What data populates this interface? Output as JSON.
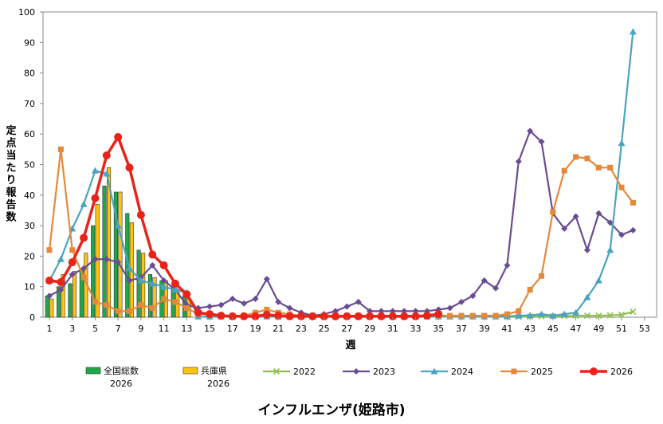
{
  "chart_data": {
    "type": "bar+line",
    "title": "インフルエンザ(姫路市)",
    "xlabel": "週",
    "ylabel": "定点当たり報告数",
    "xlim": [
      1,
      53
    ],
    "ylim": [
      0,
      100
    ],
    "yticks": [
      0,
      10,
      20,
      30,
      40,
      50,
      60,
      70,
      80,
      90,
      100
    ],
    "xticks": [
      1,
      3,
      5,
      7,
      9,
      11,
      13,
      15,
      17,
      19,
      21,
      23,
      25,
      27,
      29,
      31,
      33,
      35,
      37,
      39,
      41,
      43,
      45,
      47,
      49,
      51,
      53
    ],
    "colors": {
      "national": "#1fa84a",
      "hyogo": "#ffc20e",
      "y2022": "#8fbf4f",
      "y2023": "#6a4c93",
      "y2024": "#4aa3c0",
      "y2025": "#e6883a",
      "y2026": "#e8231a"
    },
    "bars": [
      {
        "name": "全国総数\n2026",
        "label_line1": "全国総数",
        "label_line2": "2026",
        "color_key": "national",
        "x": [
          1,
          2,
          3,
          4,
          5,
          6,
          7,
          8,
          9,
          10,
          11,
          12,
          13
        ],
        "values": [
          7,
          10,
          11,
          16,
          30,
          43,
          41,
          34,
          22,
          14,
          12,
          10,
          7
        ]
      },
      {
        "name": "兵庫県\n2026",
        "label_line1": "兵庫県",
        "label_line2": "2026",
        "color_key": "hyogo",
        "x": [
          1,
          2,
          3,
          4,
          5,
          6,
          7,
          8,
          9,
          10,
          11,
          12,
          13
        ],
        "values": [
          6,
          14,
          15,
          21,
          37,
          49,
          41,
          31,
          21,
          13,
          12,
          9,
          6
        ]
      }
    ],
    "series": [
      {
        "name": "2022",
        "color_key": "y2022",
        "marker": "x",
        "x": [
          41,
          42,
          43,
          44,
          45,
          46,
          47,
          48,
          49,
          50,
          51,
          52
        ],
        "values": [
          0.1,
          0.1,
          0.2,
          0.3,
          0.3,
          0.4,
          0.5,
          0.5,
          0.5,
          0.6,
          0.8,
          1.8
        ]
      },
      {
        "name": "2023",
        "color_key": "y2023",
        "marker": "diamond",
        "x": [
          1,
          2,
          3,
          4,
          5,
          6,
          7,
          8,
          9,
          10,
          11,
          12,
          13,
          14,
          15,
          16,
          17,
          18,
          19,
          20,
          21,
          22,
          23,
          24,
          25,
          26,
          27,
          28,
          29,
          30,
          31,
          32,
          33,
          34,
          35,
          36,
          37,
          38,
          39,
          40,
          41,
          42,
          43,
          44,
          45,
          46,
          47,
          48,
          49,
          50,
          51,
          52
        ],
        "values": [
          7,
          9,
          14,
          16,
          19,
          19,
          18,
          12,
          13,
          17,
          12,
          9,
          4,
          3,
          3.5,
          4,
          6,
          4.5,
          6,
          12.5,
          5,
          3,
          1.5,
          0.5,
          1,
          2,
          3.5,
          5,
          2,
          2,
          2,
          2,
          2,
          2,
          2.5,
          3,
          5,
          7,
          12,
          9.5,
          17,
          51,
          61,
          57.5,
          34,
          29,
          33,
          22,
          34,
          31,
          27,
          28.5
        ]
      },
      {
        "name": "2024",
        "color_key": "y2024",
        "marker": "triangle",
        "x": [
          1,
          2,
          3,
          4,
          5,
          6,
          7,
          8,
          9,
          10,
          11,
          12,
          13,
          14,
          15,
          16,
          17,
          18,
          19,
          20,
          21,
          22,
          23,
          24,
          25,
          26,
          27,
          28,
          29,
          30,
          31,
          32,
          33,
          34,
          35,
          36,
          37,
          38,
          39,
          40,
          41,
          42,
          43,
          44,
          45,
          46,
          47,
          48,
          49,
          50,
          51,
          52
        ],
        "values": [
          12,
          19,
          29,
          37,
          48,
          47,
          30,
          16,
          12,
          11,
          10,
          9,
          8,
          0.2,
          0.2,
          0.2,
          0.2,
          0.2,
          0.2,
          0.2,
          0.2,
          0.2,
          0.2,
          0.2,
          0.2,
          0.2,
          0.2,
          0.2,
          0.2,
          0.2,
          0.2,
          0.2,
          0.2,
          0.2,
          0.2,
          0.2,
          0.2,
          0.2,
          0.2,
          0.2,
          0.3,
          0.5,
          0.6,
          1,
          0.5,
          1,
          1.5,
          6.5,
          12,
          22,
          57,
          93.5
        ]
      },
      {
        "name": "2025",
        "color_key": "y2025",
        "marker": "square",
        "x": [
          1,
          2,
          3,
          4,
          5,
          6,
          7,
          8,
          9,
          10,
          11,
          12,
          13,
          14,
          15,
          16,
          17,
          18,
          19,
          20,
          21,
          22,
          23,
          24,
          25,
          26,
          27,
          28,
          29,
          30,
          31,
          32,
          33,
          34,
          35,
          36,
          37,
          38,
          39,
          40,
          41,
          42,
          43,
          44,
          45,
          46,
          47,
          48,
          49,
          50,
          51,
          52
        ],
        "values": [
          22,
          55,
          22,
          13,
          5,
          4,
          2,
          2,
          4,
          3,
          6,
          5,
          3,
          1,
          1,
          0.5,
          0.5,
          0.5,
          1.5,
          2.5,
          1.5,
          1,
          0.5,
          0.5,
          0.5,
          0.5,
          0.5,
          0.5,
          0.5,
          0.5,
          0.5,
          0.5,
          0.5,
          0.5,
          0.5,
          0.5,
          0.5,
          0.5,
          0.5,
          0.5,
          1,
          2,
          9,
          13.5,
          34.5,
          48,
          52.5,
          52,
          49,
          49,
          42.5,
          37.5
        ]
      },
      {
        "name": "2026",
        "color_key": "y2026",
        "marker": "circle",
        "x": [
          1,
          2,
          3,
          4,
          5,
          6,
          7,
          8,
          9,
          10,
          11,
          12,
          13,
          14,
          15,
          16,
          17,
          18,
          19,
          20,
          21,
          22,
          23,
          24,
          25,
          26,
          27,
          28,
          29,
          30,
          31,
          32,
          33,
          34,
          35
        ],
        "values": [
          12,
          11.5,
          18,
          26,
          39,
          53,
          59,
          49,
          33.5,
          20.5,
          17,
          11,
          7.5,
          1.5,
          1,
          0.5,
          0.3,
          0.3,
          0.3,
          0.8,
          0.5,
          0.3,
          0.3,
          0.3,
          0.3,
          0.3,
          0.3,
          0.3,
          0.3,
          0.3,
          0.3,
          0.3,
          0.3,
          0.5,
          1
        ]
      }
    ],
    "legend": {
      "position": "bottom",
      "order": [
        "全国総数\n2026",
        "兵庫県\n2026",
        "2022",
        "2023",
        "2024",
        "2025",
        "2026"
      ]
    },
    "grid": false
  }
}
